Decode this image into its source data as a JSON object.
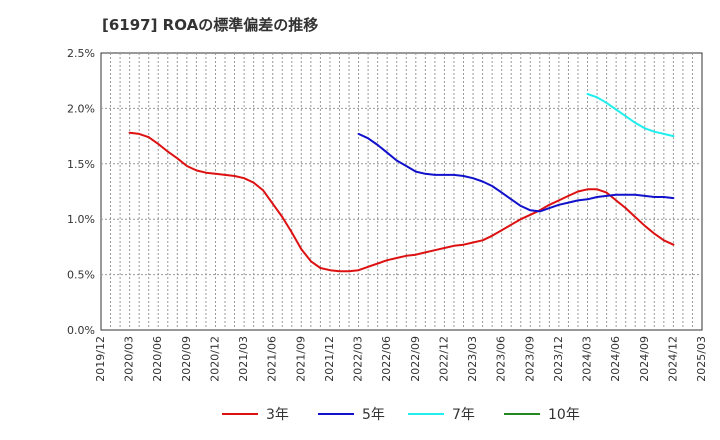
{
  "chart_data": {
    "type": "line",
    "title": "[6197]  ROAの標準偏差の推移",
    "xlabel": "",
    "ylabel": "",
    "x_ticks": [
      "2019/12",
      "2020/03",
      "2020/06",
      "2020/09",
      "2020/12",
      "2021/03",
      "2021/06",
      "2021/09",
      "2021/12",
      "2022/03",
      "2022/06",
      "2022/09",
      "2022/12",
      "2023/03",
      "2023/06",
      "2023/09",
      "2023/12",
      "2024/03",
      "2024/06",
      "2024/09",
      "2024/12",
      "2025/03"
    ],
    "y_ticks": [
      "0.0%",
      "0.5%",
      "1.0%",
      "1.5%",
      "2.0%",
      "2.5%"
    ],
    "ylim": [
      0,
      2.5
    ],
    "grid": true,
    "legend_position": "bottom",
    "series": [
      {
        "name": "3年",
        "color": "#dd1111",
        "points": [
          [
            "2020/03",
            1.78
          ],
          [
            "2020/04",
            1.77
          ],
          [
            "2020/05",
            1.74
          ],
          [
            "2020/06",
            1.68
          ],
          [
            "2020/07",
            1.61
          ],
          [
            "2020/08",
            1.55
          ],
          [
            "2020/09",
            1.48
          ],
          [
            "2020/10",
            1.44
          ],
          [
            "2020/11",
            1.42
          ],
          [
            "2020/12",
            1.41
          ],
          [
            "2021/01",
            1.4
          ],
          [
            "2021/02",
            1.39
          ],
          [
            "2021/03",
            1.37
          ],
          [
            "2021/04",
            1.33
          ],
          [
            "2021/05",
            1.26
          ],
          [
            "2021/06",
            1.14
          ],
          [
            "2021/07",
            1.02
          ],
          [
            "2021/08",
            0.88
          ],
          [
            "2021/09",
            0.73
          ],
          [
            "2021/10",
            0.62
          ],
          [
            "2021/11",
            0.56
          ],
          [
            "2021/12",
            0.54
          ],
          [
            "2022/01",
            0.53
          ],
          [
            "2022/02",
            0.53
          ],
          [
            "2022/03",
            0.54
          ],
          [
            "2022/04",
            0.57
          ],
          [
            "2022/05",
            0.6
          ],
          [
            "2022/06",
            0.63
          ],
          [
            "2022/07",
            0.65
          ],
          [
            "2022/08",
            0.67
          ],
          [
            "2022/09",
            0.68
          ],
          [
            "2022/10",
            0.7
          ],
          [
            "2022/11",
            0.72
          ],
          [
            "2022/12",
            0.74
          ],
          [
            "2023/01",
            0.76
          ],
          [
            "2023/02",
            0.77
          ],
          [
            "2023/03",
            0.79
          ],
          [
            "2023/04",
            0.81
          ],
          [
            "2023/05",
            0.85
          ],
          [
            "2023/06",
            0.9
          ],
          [
            "2023/07",
            0.95
          ],
          [
            "2023/08",
            1.0
          ],
          [
            "2023/09",
            1.04
          ],
          [
            "2023/10",
            1.08
          ],
          [
            "2023/11",
            1.13
          ],
          [
            "2023/12",
            1.17
          ],
          [
            "2024/01",
            1.21
          ],
          [
            "2024/02",
            1.25
          ],
          [
            "2024/03",
            1.27
          ],
          [
            "2024/04",
            1.27
          ],
          [
            "2024/05",
            1.24
          ],
          [
            "2024/06",
            1.17
          ],
          [
            "2024/07",
            1.1
          ],
          [
            "2024/08",
            1.02
          ],
          [
            "2024/09",
            0.94
          ],
          [
            "2024/10",
            0.87
          ],
          [
            "2024/11",
            0.81
          ],
          [
            "2024/12",
            0.77
          ]
        ]
      },
      {
        "name": "5年",
        "color": "#1111cc",
        "points": [
          [
            "2022/03",
            1.77
          ],
          [
            "2022/04",
            1.73
          ],
          [
            "2022/05",
            1.67
          ],
          [
            "2022/06",
            1.6
          ],
          [
            "2022/07",
            1.53
          ],
          [
            "2022/08",
            1.48
          ],
          [
            "2022/09",
            1.43
          ],
          [
            "2022/10",
            1.41
          ],
          [
            "2022/11",
            1.4
          ],
          [
            "2022/12",
            1.4
          ],
          [
            "2023/01",
            1.4
          ],
          [
            "2023/02",
            1.39
          ],
          [
            "2023/03",
            1.37
          ],
          [
            "2023/04",
            1.34
          ],
          [
            "2023/05",
            1.3
          ],
          [
            "2023/06",
            1.24
          ],
          [
            "2023/07",
            1.18
          ],
          [
            "2023/08",
            1.12
          ],
          [
            "2023/09",
            1.08
          ],
          [
            "2023/10",
            1.07
          ],
          [
            "2023/11",
            1.1
          ],
          [
            "2023/12",
            1.13
          ],
          [
            "2024/01",
            1.15
          ],
          [
            "2024/02",
            1.17
          ],
          [
            "2024/03",
            1.18
          ],
          [
            "2024/04",
            1.2
          ],
          [
            "2024/05",
            1.21
          ],
          [
            "2024/06",
            1.22
          ],
          [
            "2024/07",
            1.22
          ],
          [
            "2024/08",
            1.22
          ],
          [
            "2024/09",
            1.21
          ],
          [
            "2024/10",
            1.2
          ],
          [
            "2024/11",
            1.2
          ],
          [
            "2024/12",
            1.19
          ]
        ]
      },
      {
        "name": "7年",
        "color": "#22eeee",
        "points": [
          [
            "2024/03",
            2.13
          ],
          [
            "2024/04",
            2.1
          ],
          [
            "2024/05",
            2.05
          ],
          [
            "2024/06",
            1.99
          ],
          [
            "2024/07",
            1.93
          ],
          [
            "2024/08",
            1.87
          ],
          [
            "2024/09",
            1.82
          ],
          [
            "2024/10",
            1.79
          ],
          [
            "2024/11",
            1.77
          ],
          [
            "2024/12",
            1.75
          ]
        ]
      },
      {
        "name": "10年",
        "color": "#228822",
        "points": []
      }
    ]
  }
}
